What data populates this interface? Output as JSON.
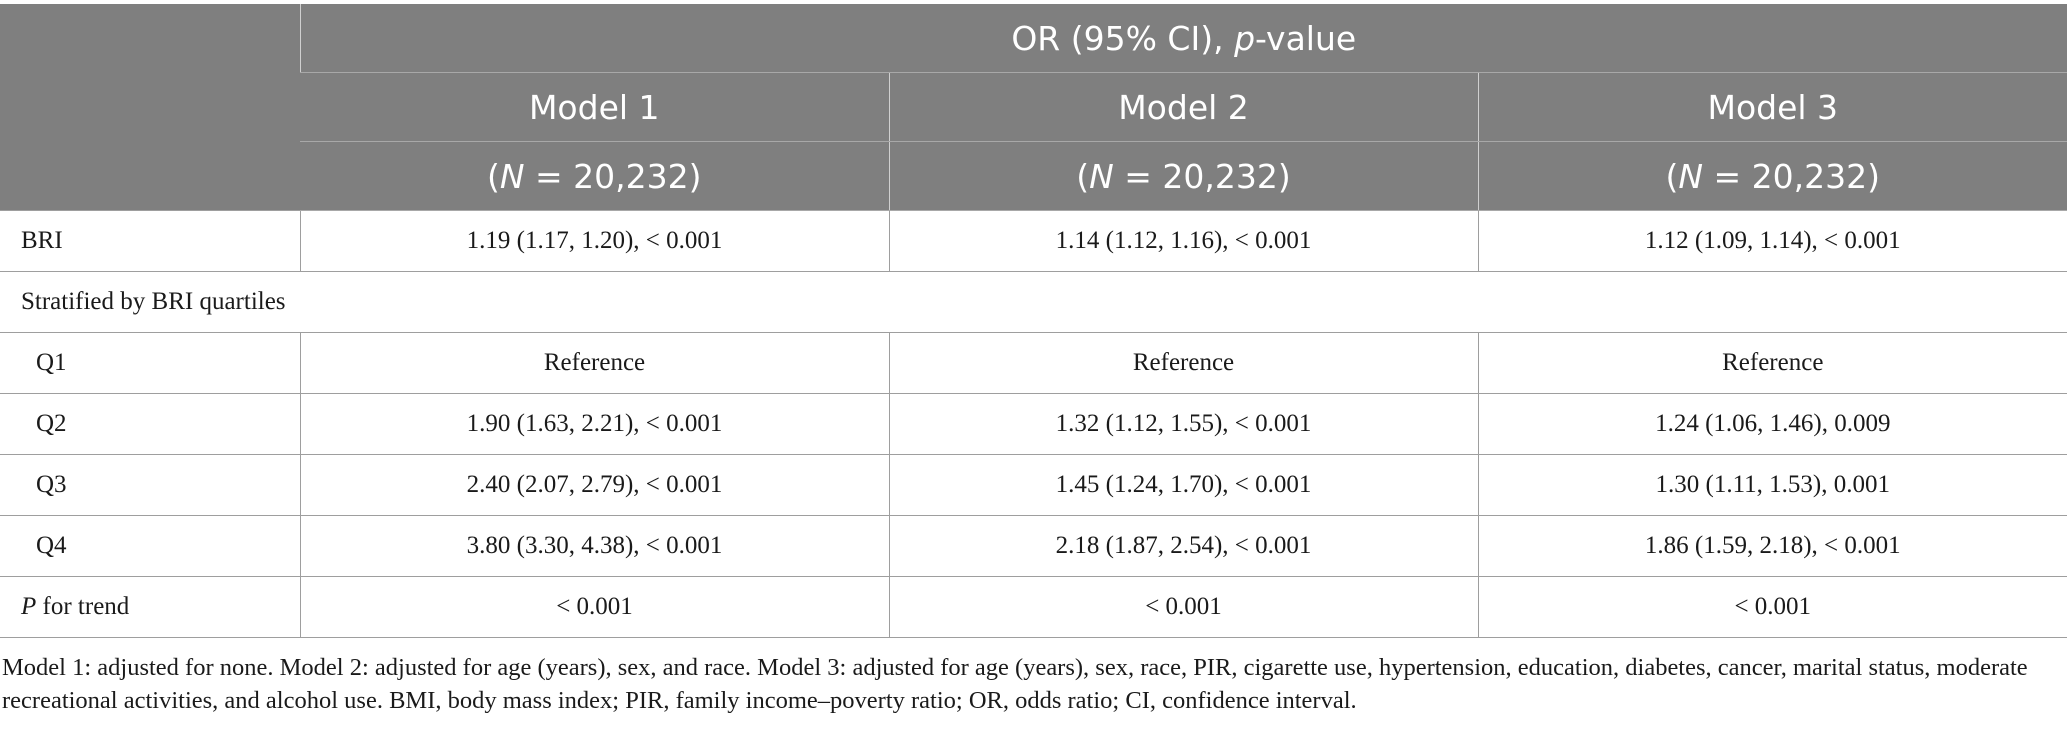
{
  "header": {
    "group_label_prefix": "OR (95% CI), ",
    "group_label_italic": "p",
    "group_label_suffix": "-value",
    "models": [
      {
        "name": "Model 1",
        "n_prefix": "(",
        "n_italic": "N",
        "n_suffix": " = 20,232)"
      },
      {
        "name": "Model 2",
        "n_prefix": "(",
        "n_italic": "N",
        "n_suffix": " = 20,232)"
      },
      {
        "name": "Model 3",
        "n_prefix": "(",
        "n_italic": "N",
        "n_suffix": " = 20,232)"
      }
    ]
  },
  "rows": {
    "bri": {
      "label": "BRI",
      "values": [
        "1.19 (1.17, 1.20), < 0.001",
        "1.14 (1.12, 1.16), < 0.001",
        "1.12 (1.09, 1.14), < 0.001"
      ]
    },
    "stratified": {
      "label": "Stratified by BRI quartiles"
    },
    "q1": {
      "label": "Q1",
      "values": [
        "Reference",
        "Reference",
        "Reference"
      ]
    },
    "q2": {
      "label": "Q2",
      "values": [
        "1.90 (1.63, 2.21), < 0.001",
        "1.32 (1.12, 1.55), < 0.001",
        "1.24 (1.06, 1.46), 0.009"
      ]
    },
    "q3": {
      "label": "Q3",
      "values": [
        "2.40 (2.07, 2.79), < 0.001",
        "1.45 (1.24, 1.70), < 0.001",
        "1.30 (1.11, 1.53), 0.001"
      ]
    },
    "q4": {
      "label": "Q4",
      "values": [
        "3.80 (3.30, 4.38), < 0.001",
        "2.18 (1.87, 2.54), < 0.001",
        "1.86 (1.59, 2.18), < 0.001"
      ]
    },
    "trend": {
      "label_italic": "P",
      "label_rest": " for trend",
      "values": [
        "< 0.001",
        "< 0.001",
        "< 0.001"
      ]
    }
  },
  "footnote": "Model 1: adjusted for none. Model 2: adjusted for age (years), sex, and race. Model 3: adjusted for age (years), sex, race, PIR, cigarette use, hypertension, education, diabetes, cancer, marital status, moderate recreational activities, and alcohol use. BMI, body mass index; PIR, family income–poverty ratio; OR, odds ratio; CI, confidence interval."
}
